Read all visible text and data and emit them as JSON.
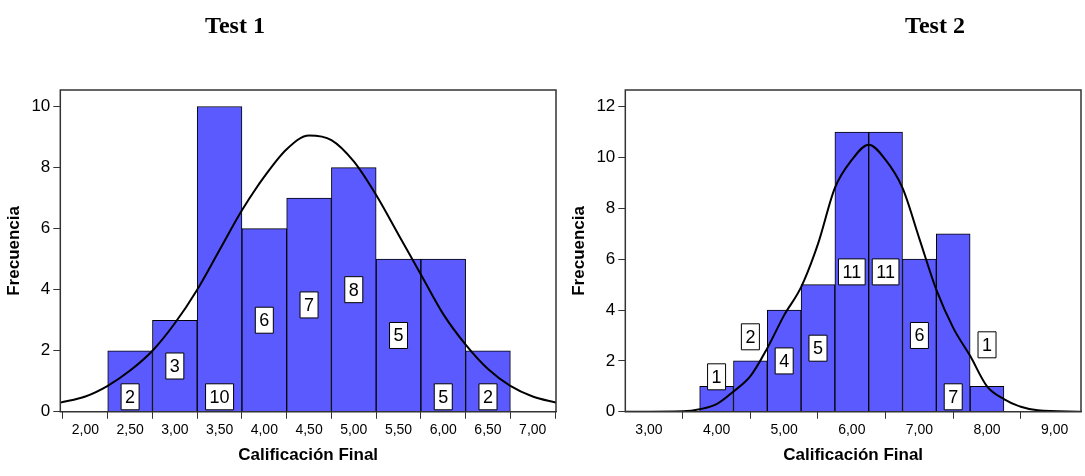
{
  "chart_data": [
    {
      "type": "histogram",
      "title": "Test 1",
      "xlabel": "Calificación Final",
      "ylabel": "Frecuencia",
      "bins": [
        2.25,
        2.75,
        3.25,
        3.75,
        4.25,
        4.75,
        5.25,
        5.75,
        6.25,
        6.75
      ],
      "values": [
        2,
        3,
        10,
        6,
        7,
        8,
        5,
        5,
        2
      ],
      "value_labels": [
        "2",
        "3",
        "10",
        "6",
        "7",
        "8",
        "5",
        "5",
        "2"
      ],
      "color": "#5a5aff",
      "grid": false,
      "legend": false,
      "xlim": [
        1.72,
        7.26
      ],
      "ylim": [
        0,
        10.54
      ],
      "xticks": [
        {
          "value": 2,
          "label": "2,00"
        },
        {
          "value": 2.5,
          "label": "2,50"
        },
        {
          "value": 3,
          "label": "3,00"
        },
        {
          "value": 3.5,
          "label": "3,50"
        },
        {
          "value": 4,
          "label": "4,00"
        },
        {
          "value": 4.5,
          "label": "4,50"
        },
        {
          "value": 5,
          "label": "5,00"
        },
        {
          "value": 5.5,
          "label": "5,50"
        },
        {
          "value": 6,
          "label": "6,00"
        },
        {
          "value": 6.5,
          "label": "6,50"
        },
        {
          "value": 7,
          "label": "7,00"
        }
      ],
      "yticks": [
        0,
        2,
        4,
        6,
        8,
        10
      ],
      "series": [
        {
          "type": "line",
          "color": "#000000",
          "marker": "none",
          "x": [
            1.72,
            2.0,
            2.25,
            2.5,
            2.75,
            3.0,
            3.25,
            3.5,
            3.75,
            4.0,
            4.25,
            4.5,
            4.75,
            5.0,
            5.25,
            5.5,
            5.75,
            6.0,
            6.25,
            6.5,
            6.75,
            7.0,
            7.26
          ],
          "values": [
            0.3,
            0.5,
            0.85,
            1.35,
            2.0,
            2.9,
            4.0,
            5.3,
            6.6,
            7.7,
            8.6,
            9.05,
            8.9,
            8.2,
            7.1,
            5.8,
            4.5,
            3.2,
            2.2,
            1.4,
            0.85,
            0.5,
            0.3
          ]
        }
      ]
    },
    {
      "type": "histogram",
      "title": "Test 2",
      "xlabel": "Calificación Final",
      "ylabel": "Frecuencia",
      "bins": [
        3.75,
        4.25,
        4.75,
        5.25,
        5.75,
        6.25,
        6.75,
        7.25,
        7.75,
        8.25
      ],
      "values": [
        1,
        2,
        4,
        5,
        11,
        11,
        6,
        7,
        1
      ],
      "value_labels": [
        "1",
        "2",
        "4",
        "5",
        "11",
        "11",
        "6",
        "7",
        "1"
      ],
      "color": "#5a5aff",
      "grid": false,
      "legend": false,
      "xlim": [
        2.65,
        9.39
      ],
      "ylim": [
        0,
        12.65
      ],
      "xticks": [
        {
          "value": 3,
          "label": "3,00"
        },
        {
          "value": 4,
          "label": "4,00"
        },
        {
          "value": 5,
          "label": "5,00"
        },
        {
          "value": 6,
          "label": "6,00"
        },
        {
          "value": 7,
          "label": "7,00"
        },
        {
          "value": 8,
          "label": "8,00"
        },
        {
          "value": 9,
          "label": "9,00"
        }
      ],
      "yticks": [
        0,
        2,
        4,
        6,
        8,
        10,
        12
      ],
      "series": [
        {
          "type": "line",
          "color": "#000000",
          "marker": "none",
          "x": [
            2.65,
            3.5,
            3.75,
            4.0,
            4.25,
            4.5,
            4.75,
            5.0,
            5.25,
            5.5,
            5.75,
            6.0,
            6.25,
            6.5,
            6.75,
            7.0,
            7.25,
            7.5,
            7.75,
            8.0,
            8.25,
            8.5,
            8.75,
            9.39
          ],
          "values": [
            0,
            0.02,
            0.1,
            0.3,
            0.8,
            1.4,
            2.5,
            3.8,
            4.9,
            6.6,
            8.8,
            9.9,
            10.5,
            9.9,
            8.8,
            6.8,
            4.8,
            3.3,
            2.2,
            1.0,
            0.5,
            0.2,
            0.06,
            0
          ]
        }
      ]
    }
  ]
}
